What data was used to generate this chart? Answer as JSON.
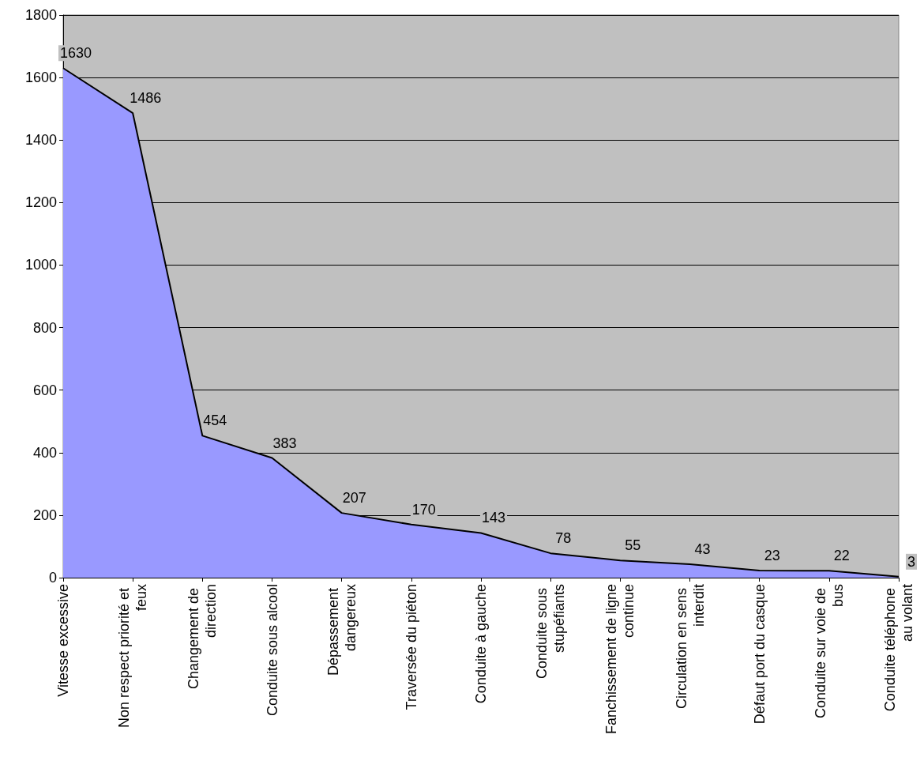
{
  "chart_data": {
    "type": "area",
    "categories": [
      "Vitesse excessive",
      "Non respect priorité et feux",
      "Changement de direction",
      "Conduite sous alcool",
      "Dépassement dangereux",
      "Traversée du piéton",
      "Conduite à gauche",
      "Conduite sous stupéfiants",
      "Fanchissement de ligne continue",
      "Circulation en sens interdit",
      "Défaut port du casque",
      "Conduite sur voie de bus",
      "Conduite téléphone au volant"
    ],
    "values": [
      1630,
      1486,
      454,
      383,
      207,
      170,
      143,
      78,
      55,
      43,
      23,
      22,
      3
    ],
    "color": "#9999ff",
    "ylim": [
      0,
      1800
    ],
    "yticks": [
      0,
      200,
      400,
      600,
      800,
      1000,
      1200,
      1400,
      1600,
      1800
    ],
    "grid": "y",
    "data_labels": true,
    "marker": "none",
    "line_style": "solid"
  }
}
